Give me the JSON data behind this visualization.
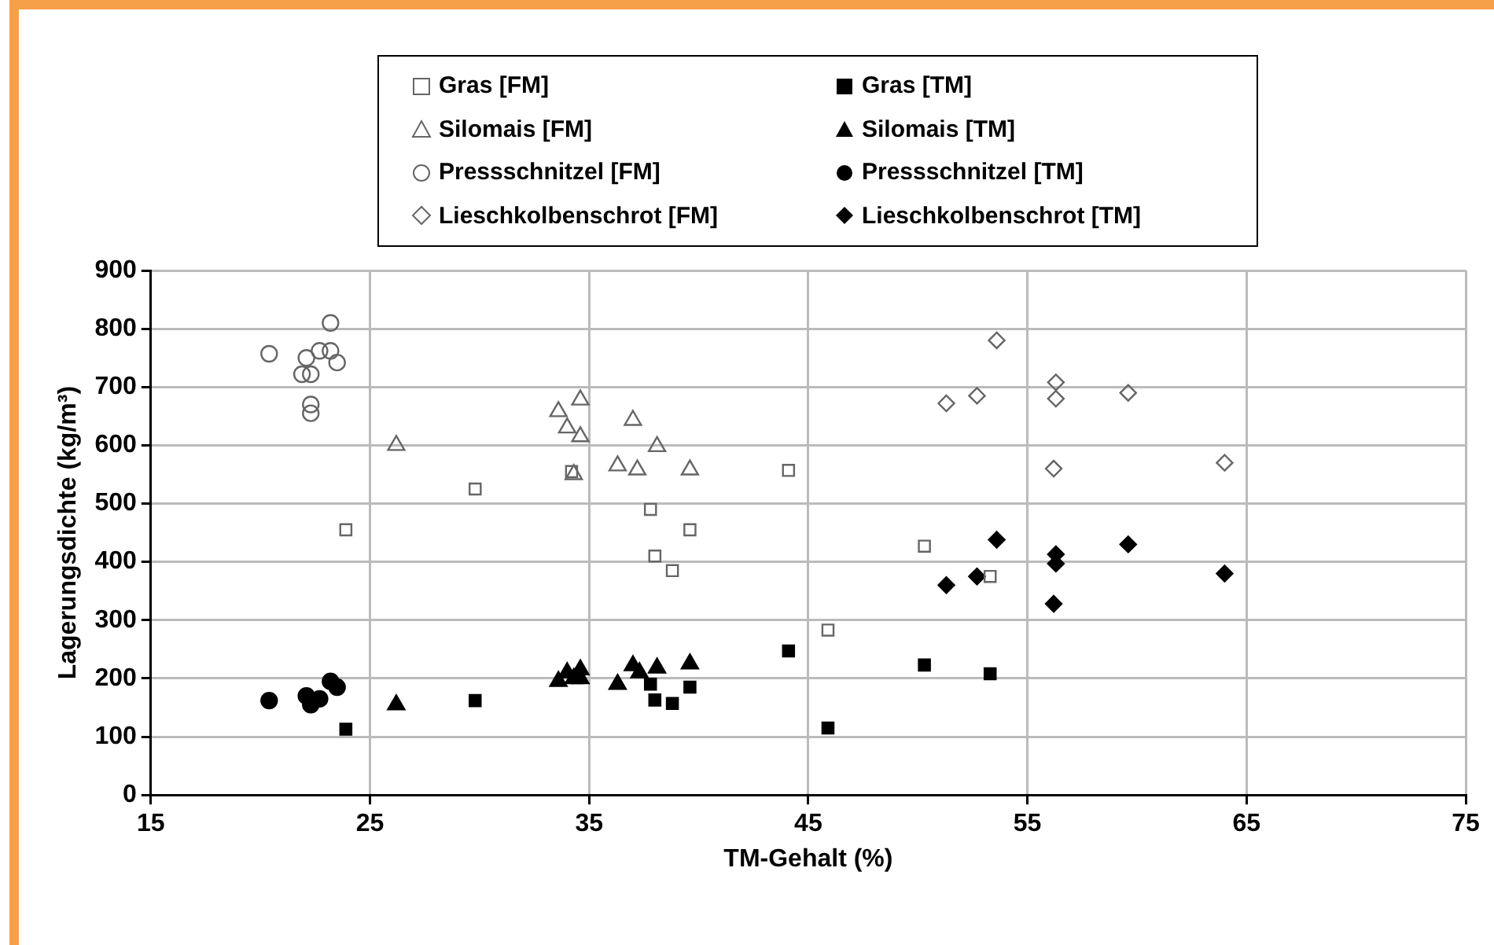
{
  "chart_data": {
    "type": "scatter",
    "xlabel": "TM-Gehalt (%)",
    "ylabel": "Lagerungsdichte (kg/m³)",
    "xlim": [
      15,
      75
    ],
    "xticks": [
      15,
      25,
      35,
      45,
      55,
      65,
      75
    ],
    "ylim": [
      0,
      900
    ],
    "yticks": [
      0,
      100,
      200,
      300,
      400,
      500,
      600,
      700,
      800,
      900
    ],
    "grid": true,
    "legend": "top",
    "series": [
      {
        "name": "Gras [FM]",
        "color": "#666666",
        "marker": "square",
        "x": [
          23.9,
          29.8,
          34.2,
          37.8,
          38.0,
          38.8,
          39.6,
          44.1,
          50.3,
          53.3,
          45.9
        ],
        "values": [
          455,
          525,
          555,
          490,
          410,
          385,
          455,
          557,
          427,
          375,
          283
        ]
      },
      {
        "name": "Gras [TM]",
        "color": "#000000",
        "marker": "square",
        "x": [
          23.9,
          29.8,
          37.8,
          38.0,
          38.8,
          39.6,
          44.1,
          50.3,
          53.3,
          45.9
        ],
        "values": [
          113,
          162,
          190,
          163,
          157,
          185,
          247,
          223,
          208,
          115
        ]
      },
      {
        "name": "Silomais [FM]",
        "color": "#666666",
        "marker": "triangle",
        "x": [
          26.2,
          33.6,
          34.0,
          34.6,
          34.6,
          34.3,
          36.3,
          37.0,
          37.2,
          38.1,
          39.6
        ],
        "values": [
          600,
          658,
          630,
          678,
          615,
          550,
          565,
          643,
          558,
          598,
          558
        ]
      },
      {
        "name": "Silomais [TM]",
        "color": "#000000",
        "marker": "triangle",
        "x": [
          26.2,
          33.6,
          34.0,
          34.6,
          34.3,
          34.6,
          36.3,
          37.0,
          37.3,
          38.1,
          39.6
        ],
        "values": [
          155,
          195,
          210,
          215,
          200,
          200,
          190,
          222,
          210,
          218,
          225
        ]
      },
      {
        "name": "Pressschnitzel [FM]",
        "color": "#666666",
        "marker": "circle",
        "x": [
          20.4,
          21.9,
          22.1,
          22.3,
          22.3,
          22.3,
          22.7,
          23.2,
          23.2,
          23.5
        ],
        "values": [
          757,
          722,
          750,
          722,
          670,
          655,
          762,
          810,
          762,
          742
        ]
      },
      {
        "name": "Pressschnitzel [TM]",
        "color": "#000000",
        "marker": "circle",
        "x": [
          20.4,
          21.9,
          22.1,
          22.3,
          22.7,
          23.2,
          23.5,
          22.7
        ],
        "values": [
          162,
          null,
          170,
          155,
          null,
          195,
          185,
          165
        ]
      },
      {
        "name": "Lieschkolbenschrot [FM]",
        "color": "#666666",
        "marker": "diamond",
        "x": [
          51.3,
          52.7,
          53.6,
          56.2,
          56.3,
          56.3,
          59.6,
          64.0
        ],
        "values": [
          672,
          685,
          780,
          560,
          708,
          680,
          690,
          570
        ]
      },
      {
        "name": "Lieschkolbenschrot [TM]",
        "color": "#000000",
        "marker": "diamond",
        "x": [
          51.3,
          52.7,
          53.6,
          56.2,
          56.3,
          56.3,
          59.6,
          64.0
        ],
        "values": [
          360,
          375,
          438,
          328,
          413,
          397,
          430,
          380
        ]
      }
    ]
  }
}
